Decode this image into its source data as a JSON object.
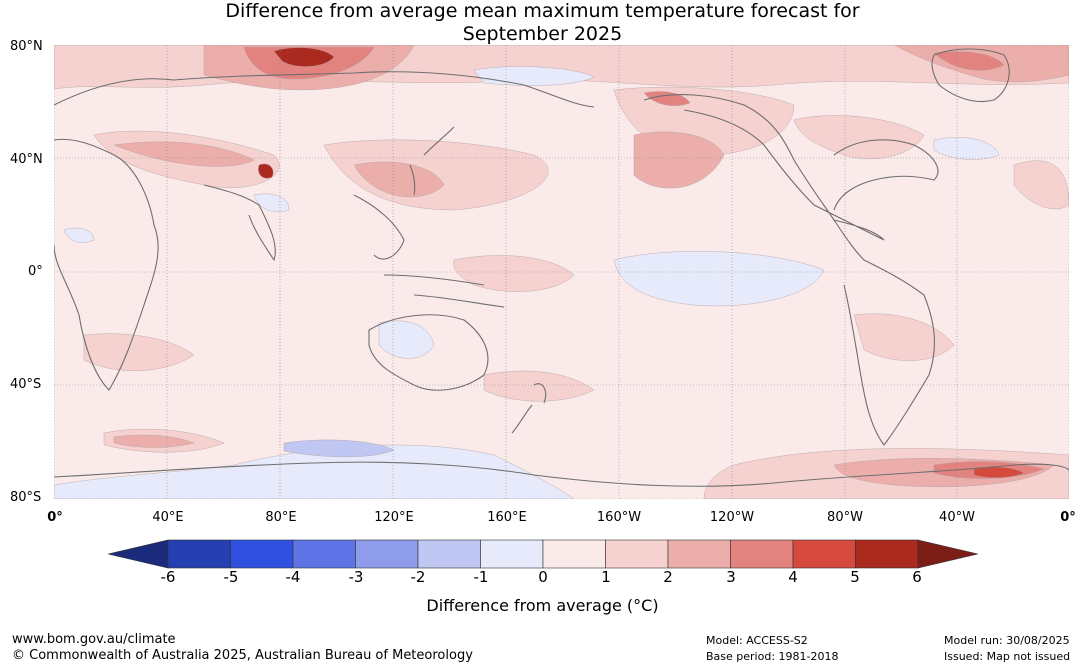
{
  "title_line1": "Difference from average mean maximum temperature forecast for",
  "title_line2": "September 2025",
  "lat_labels": [
    "80°N",
    "40°N",
    "0°",
    "40°S",
    "80°S"
  ],
  "lon_labels": [
    "0°",
    "40°E",
    "80°E",
    "120°E",
    "160°E",
    "160°W",
    "120°W",
    "80°W",
    "40°W",
    "0°"
  ],
  "colorbar": {
    "ticks": [
      "-6",
      "-5",
      "-4",
      "-3",
      "-2",
      "-1",
      "0",
      "1",
      "2",
      "3",
      "4",
      "5",
      "6"
    ],
    "colors": [
      "#1c2a7c",
      "#263fb0",
      "#3050e0",
      "#5e74e6",
      "#8e9ce9",
      "#c0c7f3",
      "#e6eafb",
      "#fbeaea",
      "#f5d2d0",
      "#ecaeab",
      "#e38380",
      "#d54a3d",
      "#aa2a20",
      "#7c1e17"
    ],
    "label": "Difference from average (°C)"
  },
  "map_colors": {
    "base": "#fbeaea",
    "warm1": "#f5d2d0",
    "warm2": "#ecaeab",
    "warm3": "#e38380",
    "warm4": "#d54a3d",
    "warm5": "#aa2a20",
    "cool1": "#e6eafb",
    "cool2": "#c0c7f3",
    "coast": "#6e6e6e",
    "grid": "#888888"
  },
  "footer": {
    "website": "www.bom.gov.au/climate",
    "copyright": "© Commonwealth of Australia 2025, Australian Bureau of Meteorology",
    "model": "Model: ACCESS-S2",
    "base_period": "Base period: 1981-2018",
    "model_run": "Model run: 30/08/2025",
    "issued": "Issued: Map not issued"
  }
}
